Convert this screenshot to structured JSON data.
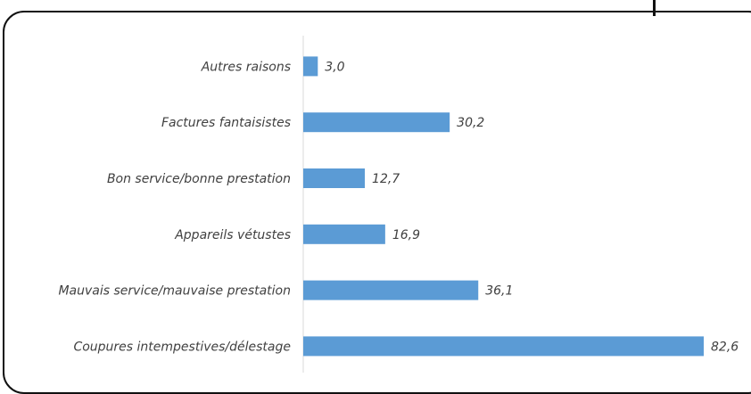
{
  "chart_data": {
    "type": "bar",
    "orientation": "horizontal",
    "categories": [
      "Autres raisons",
      "Factures fantaisistes",
      "Bon service/bonne prestation",
      "Appareils vétustes",
      "Mauvais service/mauvaise prestation",
      "Coupures intempestives/délestage"
    ],
    "values": [
      3.0,
      30.2,
      12.7,
      16.9,
      36.1,
      82.6
    ],
    "value_labels": [
      "3,0",
      "30,2",
      "12,7",
      "16,9",
      "36,1",
      "82,6"
    ],
    "title": "",
    "xlabel": "",
    "ylabel": "",
    "xlim": [
      0,
      82.6
    ],
    "grid": false,
    "legend": "none",
    "bar_color": "#5b9bd5"
  }
}
